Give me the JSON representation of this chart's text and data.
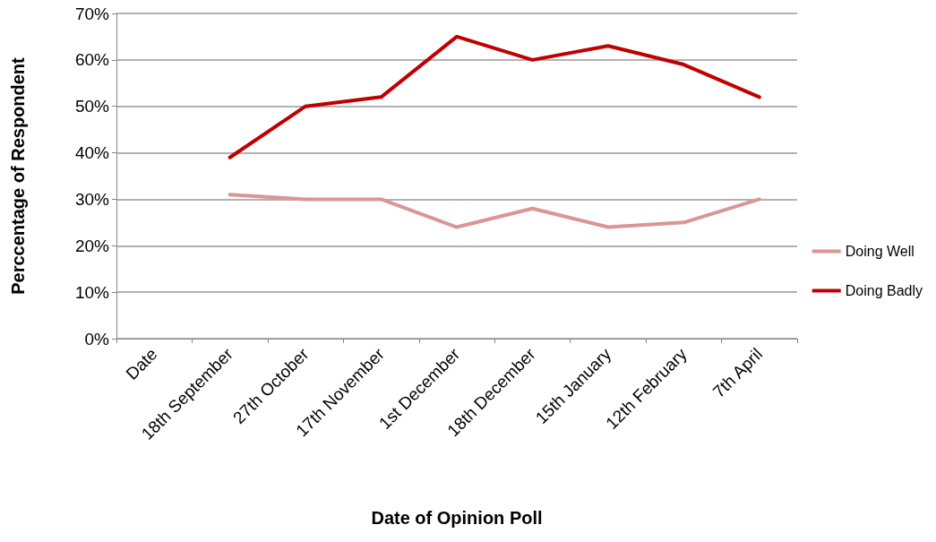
{
  "chart_data": {
    "type": "line",
    "xlabel": "Date of Opinion Poll",
    "ylabel": "Perccentage of Respondent",
    "categories": [
      "Date",
      "18th September",
      "27th October",
      "17th November",
      "1st December",
      "18th December",
      "15th January",
      "12th February",
      "7th April"
    ],
    "series": [
      {
        "name": "Doing Well",
        "color": "#d99694",
        "values": [
          null,
          31,
          30,
          30,
          24,
          28,
          24,
          25,
          30
        ]
      },
      {
        "name": "Doing Badly",
        "color": "#c00000",
        "values": [
          null,
          39,
          50,
          52,
          65,
          60,
          63,
          59,
          52
        ]
      }
    ],
    "ylim": [
      0,
      70
    ],
    "yticks": [
      {
        "value": 0,
        "label": "0%"
      },
      {
        "value": 10,
        "label": "10%"
      },
      {
        "value": 20,
        "label": "20%"
      },
      {
        "value": 30,
        "label": "30%"
      },
      {
        "value": 40,
        "label": "40%"
      },
      {
        "value": 50,
        "label": "50%"
      },
      {
        "value": 60,
        "label": "60%"
      },
      {
        "value": 70,
        "label": "70%"
      }
    ],
    "grid": "y",
    "legend": "right",
    "marker": "none",
    "line_style": "solid"
  }
}
